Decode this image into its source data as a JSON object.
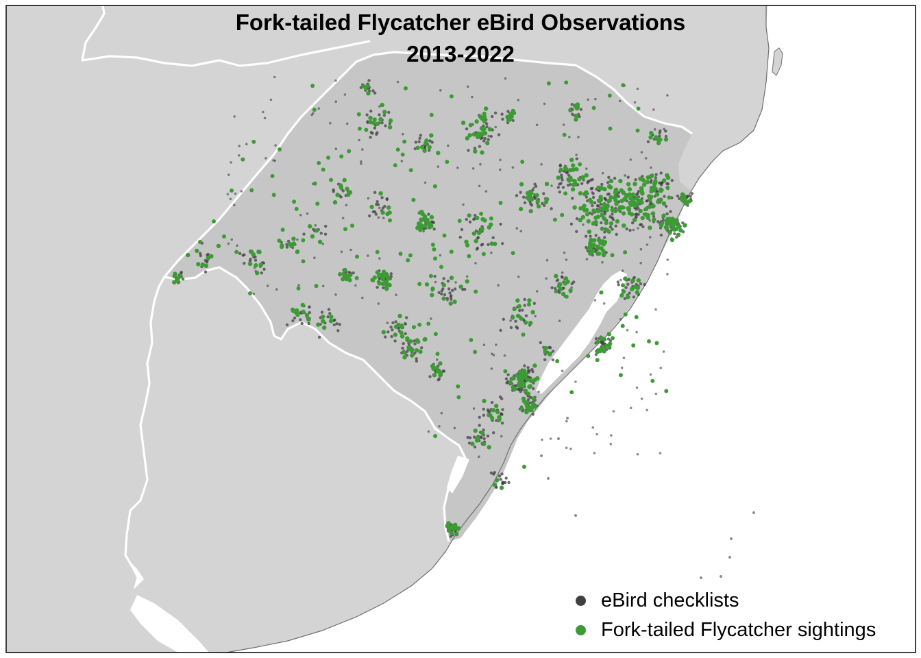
{
  "map": {
    "title_line1": "Fork-tailed Flycatcher eBird Observations",
    "title_line2": "2013-2022",
    "colors": {
      "land": "#d4d4d4",
      "state": "#c6c6c6",
      "border": "#ffffff",
      "coastline": "#6e6e6e",
      "water": "#ffffff",
      "checklist": "#404040",
      "sighting": "#3d9b35"
    },
    "legend": [
      {
        "label": "eBird checklists",
        "color": "#404040",
        "icon": "dot-icon"
      },
      {
        "label": "Fork-tailed Flycatcher sightings",
        "color": "#3d9b35",
        "icon": "dot-icon"
      }
    ]
  }
}
